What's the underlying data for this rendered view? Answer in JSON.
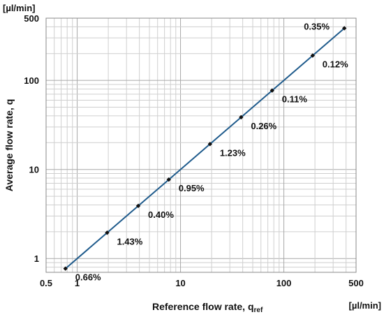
{
  "chart_data": {
    "type": "line",
    "title": "",
    "xlabel": "Reference flow rate, q",
    "xlabel_subscript": "ref",
    "ylabel": "Average flow rate, q",
    "x_unit": "[µl/min]",
    "y_unit": "[µl/min]",
    "xscale": "log",
    "yscale": "log",
    "xlim": [
      0.5,
      500
    ],
    "ylim": [
      0.7,
      500
    ],
    "x_ticks": [
      {
        "value": 0.5,
        "label": "0.5"
      },
      {
        "value": 1,
        "label": "1"
      },
      {
        "value": 10,
        "label": "10"
      },
      {
        "value": 100,
        "label": "100"
      },
      {
        "value": 500,
        "label": "500"
      }
    ],
    "y_ticks": [
      {
        "value": 1,
        "label": "1"
      },
      {
        "value": 10,
        "label": "10"
      },
      {
        "value": 100,
        "label": "100"
      },
      {
        "value": 500,
        "label": "500"
      }
    ],
    "grid": true,
    "legend": "none",
    "series": [
      {
        "color": "#1f5b8c",
        "marker_color": "#111111",
        "x": [
          0.77,
          1.95,
          3.9,
          7.7,
          19.3,
          38.6,
          77,
          190,
          385
        ],
        "y": [
          0.77,
          1.95,
          3.9,
          7.7,
          19.3,
          38.6,
          77,
          190,
          385
        ],
        "labels": [
          "0.66%",
          "1.43%",
          "0.40%",
          "0.95%",
          "1.23%",
          "0.26%",
          "0.11%",
          "0.12%",
          "0.35%"
        ]
      }
    ]
  }
}
